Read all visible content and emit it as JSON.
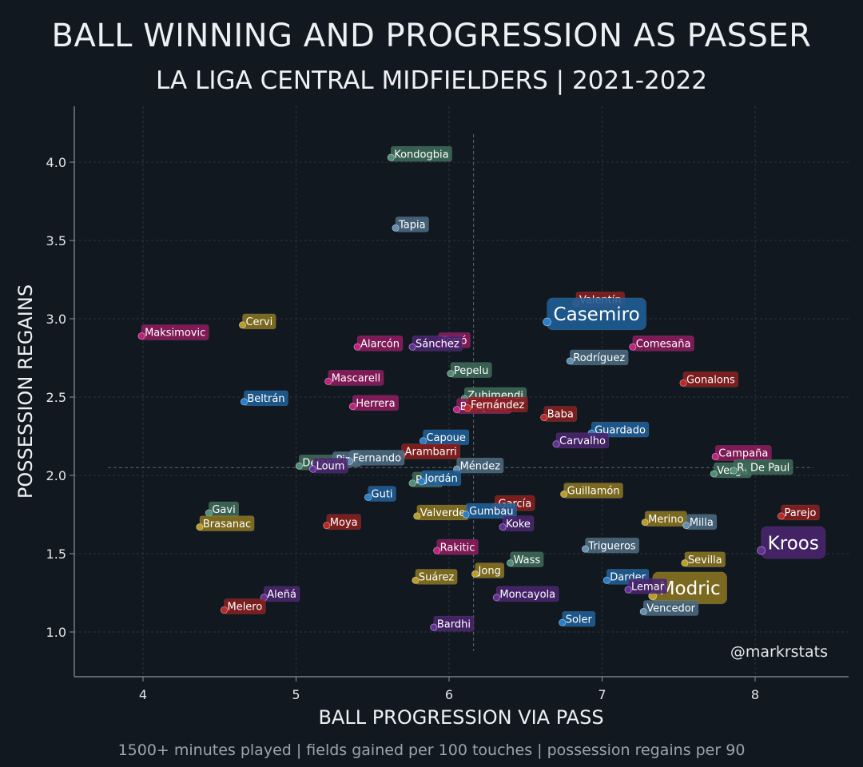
{
  "header": {
    "title": "BALL WINNING AND PROGRESSION AS PASSER",
    "subtitle": "LA LIGA CENTRAL MIDFIELDERS | 2021-2022"
  },
  "footer": {
    "note": "1500+ minutes played | fields gained per 100 touches | possession regains per 90"
  },
  "credit": "@markrstats",
  "colors": {
    "background": "#111820",
    "grid": "#2a343d",
    "axis": "#8a949c",
    "team_colors": {
      "teal": "#3d6a58",
      "gold": "#8a7420",
      "maroon": "#8b1e1e",
      "magenta": "#8e1a5e",
      "blue": "#1f5e96",
      "slate": "#4a6a80",
      "purple": "#4a2370"
    }
  },
  "chart_data": {
    "type": "scatter",
    "title": "BALL WINNING AND PROGRESSION AS PASSER",
    "subtitle": "LA LIGA CENTRAL MIDFIELDERS | 2021-2022",
    "xlabel": "BALL PROGRESSION VIA PASS",
    "ylabel": "POSSESSION REGAINS",
    "xlim": [
      3.55,
      8.6
    ],
    "ylim": [
      0.72,
      4.35
    ],
    "xticks": [
      4,
      5,
      6,
      7,
      8
    ],
    "yticks": [
      1.0,
      1.5,
      2.0,
      2.5,
      3.0,
      3.5,
      4.0
    ],
    "grid": true,
    "reference_lines": {
      "x_mean": 6.16,
      "y_mean": 2.05
    },
    "points": [
      {
        "name": "Kondogbia",
        "x": 5.62,
        "y": 4.03,
        "color": "teal"
      },
      {
        "name": "Tapia",
        "x": 5.65,
        "y": 3.58,
        "color": "slate"
      },
      {
        "name": "Valentín",
        "x": 6.83,
        "y": 3.1,
        "color": "maroon"
      },
      {
        "name": "Casemiro",
        "x": 6.64,
        "y": 2.98,
        "color": "blue",
        "big": true
      },
      {
        "name": "Maksimovic",
        "x": 3.99,
        "y": 2.89,
        "color": "magenta"
      },
      {
        "name": "Cervi",
        "x": 4.65,
        "y": 2.96,
        "color": "gold"
      },
      {
        "name": "Alarcón",
        "x": 5.4,
        "y": 2.82,
        "color": "magenta"
      },
      {
        "name": "Torró",
        "x": 5.93,
        "y": 2.84,
        "color": "magenta"
      },
      {
        "name": "Sánchez",
        "x": 5.76,
        "y": 2.82,
        "color": "purple"
      },
      {
        "name": "Comesaña",
        "x": 7.2,
        "y": 2.82,
        "color": "magenta"
      },
      {
        "name": "Rodríguez",
        "x": 6.79,
        "y": 2.73,
        "color": "slate"
      },
      {
        "name": "Pepelu",
        "x": 6.01,
        "y": 2.65,
        "color": "teal"
      },
      {
        "name": "Mascarell",
        "x": 5.21,
        "y": 2.6,
        "color": "magenta"
      },
      {
        "name": "Gonalons",
        "x": 7.53,
        "y": 2.59,
        "color": "maroon"
      },
      {
        "name": "Zubimendi",
        "x": 6.1,
        "y": 2.49,
        "color": "teal"
      },
      {
        "name": "Beltrán",
        "x": 4.66,
        "y": 2.47,
        "color": "blue"
      },
      {
        "name": "Herrera",
        "x": 5.37,
        "y": 2.44,
        "color": "magenta"
      },
      {
        "name": "Busquets",
        "x": 6.05,
        "y": 2.42,
        "color": "magenta"
      },
      {
        "name": "Fernández",
        "x": 6.12,
        "y": 2.43,
        "color": "maroon"
      },
      {
        "name": "Baba",
        "x": 6.62,
        "y": 2.37,
        "color": "maroon"
      },
      {
        "name": "Guardado",
        "x": 6.93,
        "y": 2.27,
        "color": "blue"
      },
      {
        "name": "Capoue",
        "x": 5.83,
        "y": 2.22,
        "color": "blue"
      },
      {
        "name": "Arambarri",
        "x": 5.69,
        "y": 2.13,
        "color": "maroon"
      },
      {
        "name": "Carvalho",
        "x": 6.7,
        "y": 2.2,
        "color": "purple"
      },
      {
        "name": "Campaña",
        "x": 7.74,
        "y": 2.12,
        "color": "magenta"
      },
      {
        "name": "Delaney",
        "x": 5.02,
        "y": 2.06,
        "color": "teal"
      },
      {
        "name": "Pina",
        "x": 5.24,
        "y": 2.08,
        "color": "slate"
      },
      {
        "name": "Fernando",
        "x": 5.35,
        "y": 2.09,
        "color": "slate"
      },
      {
        "name": "Méndez",
        "x": 6.05,
        "y": 2.04,
        "color": "slate"
      },
      {
        "name": "Vesga",
        "x": 7.73,
        "y": 2.01,
        "color": "teal"
      },
      {
        "name": "R. De Paul",
        "x": 7.86,
        "y": 2.03,
        "color": "teal"
      },
      {
        "name": "Loum",
        "x": 5.11,
        "y": 2.04,
        "color": "purple"
      },
      {
        "name": "Bare",
        "x": 5.76,
        "y": 1.95,
        "color": "teal"
      },
      {
        "name": "Jordán",
        "x": 5.82,
        "y": 1.96,
        "color": "blue"
      },
      {
        "name": "Guillamón",
        "x": 6.75,
        "y": 1.88,
        "color": "gold"
      },
      {
        "name": "Guti",
        "x": 5.47,
        "y": 1.86,
        "color": "blue"
      },
      {
        "name": "García",
        "x": 6.3,
        "y": 1.8,
        "color": "maroon"
      },
      {
        "name": "Gavi",
        "x": 4.43,
        "y": 1.76,
        "color": "teal"
      },
      {
        "name": "Valverde",
        "x": 5.79,
        "y": 1.74,
        "color": "gold"
      },
      {
        "name": "Gumbau",
        "x": 6.11,
        "y": 1.75,
        "color": "blue"
      },
      {
        "name": "Parejo",
        "x": 8.17,
        "y": 1.74,
        "color": "maroon"
      },
      {
        "name": "Merino",
        "x": 7.28,
        "y": 1.7,
        "color": "gold"
      },
      {
        "name": "Milla",
        "x": 7.55,
        "y": 1.68,
        "color": "slate"
      },
      {
        "name": "Moya",
        "x": 5.2,
        "y": 1.68,
        "color": "maroon"
      },
      {
        "name": "Brasanac",
        "x": 4.37,
        "y": 1.67,
        "color": "gold"
      },
      {
        "name": "Koke",
        "x": 6.35,
        "y": 1.67,
        "color": "purple"
      },
      {
        "name": "Kroos",
        "x": 8.04,
        "y": 1.52,
        "color": "purple",
        "big": true
      },
      {
        "name": "Trigueros",
        "x": 6.89,
        "y": 1.53,
        "color": "slate"
      },
      {
        "name": "Rakitic",
        "x": 5.92,
        "y": 1.52,
        "color": "magenta"
      },
      {
        "name": "Wass",
        "x": 6.4,
        "y": 1.44,
        "color": "teal"
      },
      {
        "name": "Sevilla",
        "x": 7.54,
        "y": 1.44,
        "color": "gold"
      },
      {
        "name": "Jong",
        "x": 6.17,
        "y": 1.37,
        "color": "gold"
      },
      {
        "name": "Suárez",
        "x": 5.78,
        "y": 1.33,
        "color": "gold"
      },
      {
        "name": "Darder",
        "x": 7.03,
        "y": 1.33,
        "color": "blue"
      },
      {
        "name": "Modric",
        "x": 7.33,
        "y": 1.23,
        "color": "gold",
        "big": true
      },
      {
        "name": "Aleñá",
        "x": 4.79,
        "y": 1.22,
        "color": "purple"
      },
      {
        "name": "Moncayola",
        "x": 6.31,
        "y": 1.22,
        "color": "purple"
      },
      {
        "name": "Lemar",
        "x": 7.17,
        "y": 1.27,
        "color": "purple"
      },
      {
        "name": "Vencedor",
        "x": 7.27,
        "y": 1.13,
        "color": "slate"
      },
      {
        "name": "Melero",
        "x": 4.53,
        "y": 1.14,
        "color": "maroon"
      },
      {
        "name": "Soler",
        "x": 6.74,
        "y": 1.06,
        "color": "blue"
      },
      {
        "name": "Bardhi",
        "x": 5.9,
        "y": 1.03,
        "color": "purple"
      }
    ]
  }
}
